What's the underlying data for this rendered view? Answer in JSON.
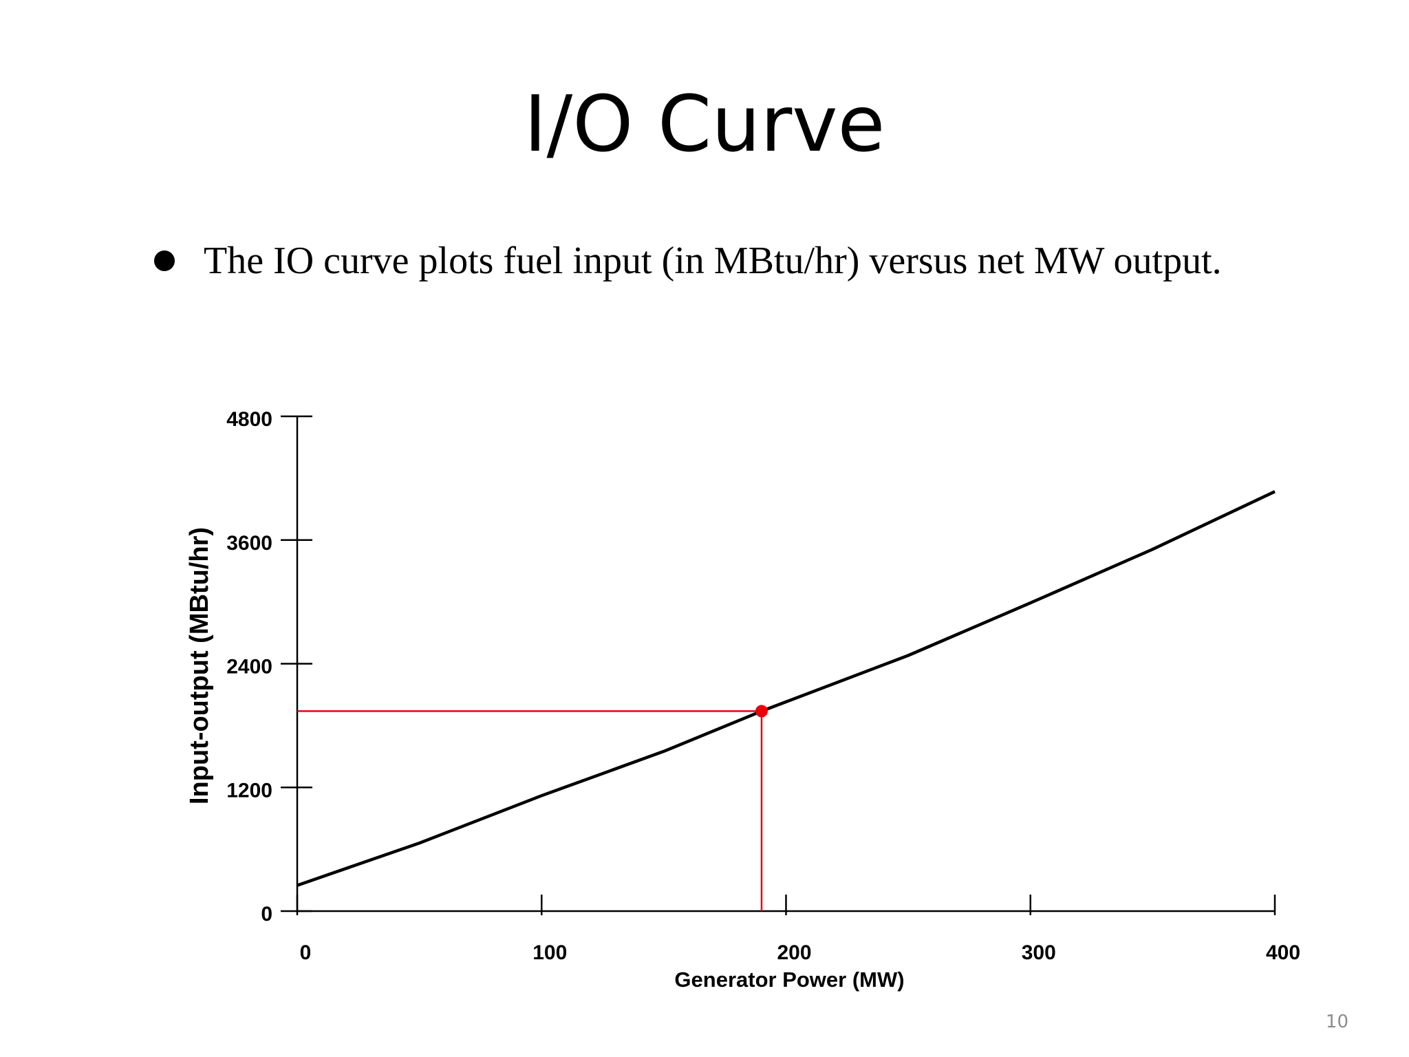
{
  "slide": {
    "title": "I/O Curve",
    "bullet": "The IO curve plots fuel input (in MBtu/hr) versus net MW output.",
    "page_number": "10"
  },
  "chart_data": {
    "type": "line",
    "title": "",
    "xlabel": "Generator Power (MW)",
    "ylabel": "Input-output (MBtu/hr)",
    "xlim": [
      0,
      400
    ],
    "ylim": [
      0,
      4800
    ],
    "x_ticks": [
      "0",
      "100",
      "200",
      "300",
      "400"
    ],
    "y_ticks": [
      "0",
      "1200",
      "2400",
      "3600",
      "4800"
    ],
    "grid": false,
    "legend": "none",
    "series": [
      {
        "x": [
          0,
          50,
          100,
          150,
          190,
          200,
          250,
          300,
          350,
          400
        ],
        "y": [
          250,
          660,
          1120,
          1550,
          1940,
          2030,
          2480,
          2990,
          3510,
          4070
        ],
        "color": "#000000"
      }
    ],
    "highlight_point": {
      "x": 190,
      "y": 1940,
      "color": "#e8000b"
    }
  }
}
